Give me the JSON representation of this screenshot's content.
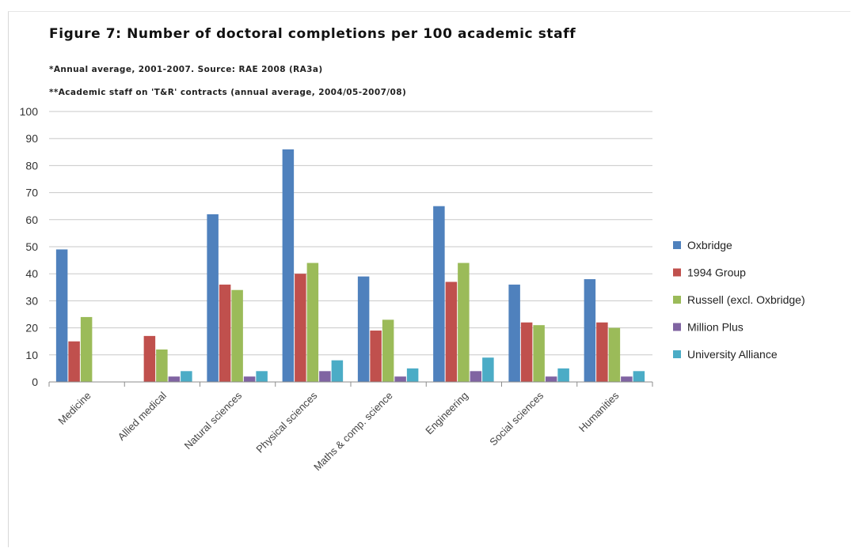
{
  "chart_data": {
    "type": "bar",
    "title": "Figure 7:  Number of doctoral completions per 100 academic staff",
    "notes": [
      "*Annual average, 2001-2007. Source: RAE 2008 (RA3a)",
      "**Academic staff on 'T&R' contracts (annual average, 2004/05-2007/08)"
    ],
    "categories": [
      "Medicine",
      "Allied medical",
      "Natural sciences",
      "Physical sciences",
      "Maths & comp. science",
      "Engineering",
      "Social sciences",
      "Humanities"
    ],
    "series": [
      {
        "name": "Oxbridge",
        "color": "#4f81bd",
        "values": [
          49,
          0,
          62,
          86,
          39,
          65,
          36,
          38
        ]
      },
      {
        "name": "1994 Group",
        "color": "#c0504d",
        "values": [
          15,
          17,
          36,
          40,
          19,
          37,
          22,
          22
        ]
      },
      {
        "name": "Russell (excl. Oxbridge)",
        "color": "#9bbb59",
        "values": [
          24,
          12,
          34,
          44,
          23,
          44,
          21,
          20
        ]
      },
      {
        "name": "Million Plus",
        "color": "#8064a2",
        "values": [
          0,
          2,
          2,
          4,
          2,
          4,
          2,
          2
        ]
      },
      {
        "name": "University Alliance",
        "color": "#4bacc6",
        "values": [
          0,
          4,
          4,
          8,
          5,
          9,
          5,
          4
        ]
      }
    ],
    "ylim": [
      0,
      100
    ],
    "yticks": [
      0,
      10,
      20,
      30,
      40,
      50,
      60,
      70,
      80,
      90,
      100
    ],
    "xlabel": "",
    "ylabel": "",
    "grid": true,
    "legend": "right"
  }
}
